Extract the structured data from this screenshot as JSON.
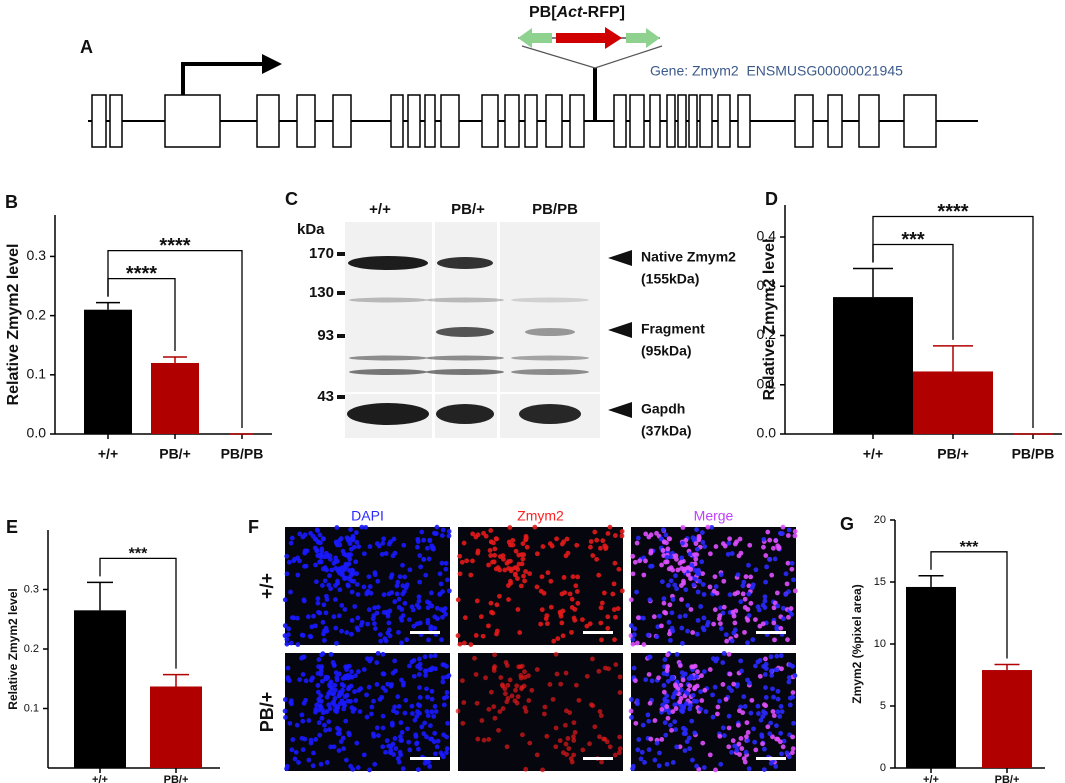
{
  "gene_diagram": {
    "panel": "A",
    "insert_label": [
      "PB[",
      "Act",
      "-RFP]"
    ],
    "gene_label": "Gene: Zmym2  ENSMUSG00000021945"
  },
  "western_blot": {
    "panel": "C",
    "unit": "kDa",
    "markers": [
      "170",
      "130",
      "93",
      "43"
    ],
    "lanes": [
      "+/+",
      "PB/+",
      "PB/PB"
    ],
    "bands": [
      {
        "name": "Native Zmym2",
        "size": "(155kDa)"
      },
      {
        "name": "Fragment",
        "size": "(95kDa)"
      },
      {
        "name": "Gapdh",
        "size": "(37kDa)"
      }
    ]
  },
  "imaging": {
    "panel": "F",
    "channels": [
      "DAPI",
      "Zmym2",
      "Merge"
    ],
    "rows": [
      "+/+",
      "PB/+"
    ]
  },
  "chart_data": [
    {
      "type": "bar",
      "panel": "B",
      "y_label": "Relative Zmym2 level",
      "categories": [
        "+/+",
        "PB/+",
        "PB/PB"
      ],
      "values": [
        0.21,
        0.12,
        0
      ],
      "errors": [
        0.012,
        0.01,
        0
      ],
      "colors": [
        "#000000",
        "#b00000",
        "#b00000"
      ],
      "ylim": [
        0,
        0.37
      ],
      "yticks": [
        {
          "value": 0,
          "label": "0.0"
        },
        0.1,
        0.2,
        0.3
      ],
      "significance": [
        {
          "label": "****",
          "groups": [
            0,
            1
          ]
        },
        {
          "label": "****",
          "groups": [
            0,
            2
          ]
        }
      ]
    },
    {
      "type": "bar",
      "panel": "D",
      "y_label": "Relative Zmym2 level",
      "categories": [
        "+/+",
        "PB/+",
        "PB/PB"
      ],
      "values": [
        0.278,
        0.127,
        0
      ],
      "errors": [
        0.058,
        0.052,
        0
      ],
      "colors": [
        "#000000",
        "#b00000",
        "#b00000"
      ],
      "ylim": [
        0,
        0.465
      ],
      "yticks": [
        {
          "value": 0,
          "label": "0.0"
        },
        0.1,
        0.2,
        0.3,
        0.4
      ],
      "significance": [
        {
          "label": "***",
          "groups": [
            0,
            1
          ]
        },
        {
          "label": "****",
          "groups": [
            0,
            2
          ]
        }
      ]
    },
    {
      "type": "bar",
      "panel": "E",
      "y_label": "Relative Zmym2 level",
      "categories": [
        "+/+",
        "PB/+"
      ],
      "values": [
        0.265,
        0.137
      ],
      "errors": [
        0.047,
        0.02
      ],
      "colors": [
        "#000000",
        "#b00000"
      ],
      "ylim": [
        0,
        0.4
      ],
      "yticks": [
        0.1,
        0.2,
        0.3
      ],
      "significance": [
        {
          "label": "***",
          "groups": [
            0,
            1
          ]
        }
      ]
    },
    {
      "type": "bar",
      "panel": "G",
      "y_label": "Zmym2 (%pixel area)",
      "categories": [
        "+/+",
        "PB/+"
      ],
      "values": [
        14.6,
        7.9
      ],
      "errors": [
        0.9,
        0.45
      ],
      "colors": [
        "#000000",
        "#b00000"
      ],
      "ylim": [
        0,
        20
      ],
      "yticks": [
        0,
        5,
        10,
        15,
        20
      ],
      "significance": [
        {
          "label": "***",
          "groups": [
            0,
            1
          ]
        }
      ]
    }
  ]
}
